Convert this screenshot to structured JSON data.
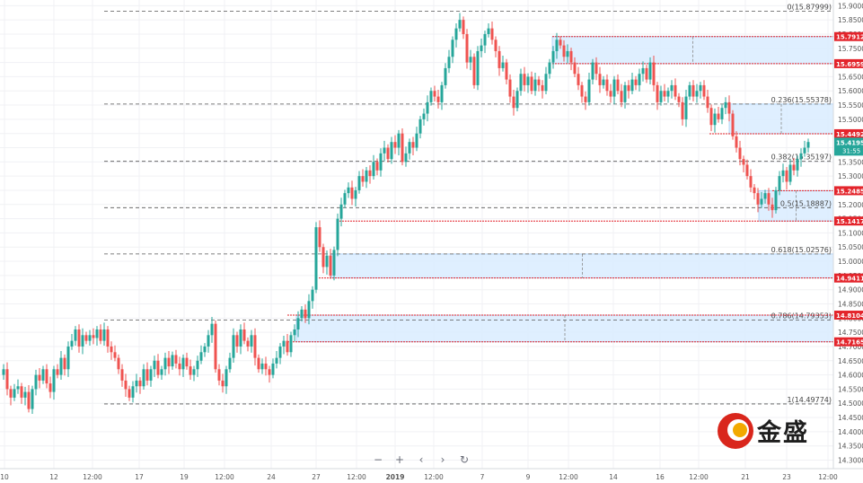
{
  "chart_data": {
    "type": "candlestick",
    "y_axis": {
      "range": [
        14.27,
        15.92
      ],
      "ticks": [
        "15.90000",
        "15.85000",
        "15.80000",
        "15.75000",
        "15.70000",
        "15.65000",
        "15.60000",
        "15.55000",
        "15.50000",
        "15.45000",
        "15.40000",
        "15.35000",
        "15.30000",
        "15.25000",
        "15.20000",
        "15.15000",
        "15.10000",
        "15.05000",
        "15.00000",
        "14.95000",
        "14.90000",
        "14.85000",
        "14.80000",
        "14.75000",
        "14.70000",
        "14.65000",
        "14.60000",
        "14.55000",
        "14.50000",
        "14.45000",
        "14.40000",
        "14.35000",
        "14.30000"
      ]
    },
    "x_axis": {
      "ticks": [
        "10",
        "12",
        "12:00",
        "17",
        "19",
        "12:00",
        "24",
        "27",
        "12:00",
        "2019",
        "12:00",
        "7",
        "9",
        "12:00",
        "14",
        "16",
        "12:00",
        "21",
        "23",
        "12:00"
      ]
    },
    "fib_levels": [
      {
        "ratio": 0,
        "value": 15.87999,
        "label": "0(15.87999)"
      },
      {
        "ratio": 0.236,
        "value": 15.55378,
        "label": "0.236(15.55378)"
      },
      {
        "ratio": 0.382,
        "value": 15.35197,
        "label": "0.382(15.35197)"
      },
      {
        "ratio": 0.5,
        "value": 15.18887,
        "label": "0.5(15.18887)"
      },
      {
        "ratio": 0.618,
        "value": 15.02576,
        "label": "0.618(15.02576)"
      },
      {
        "ratio": 0.786,
        "value": 14.79353,
        "label": "0.786(14.79353)"
      },
      {
        "ratio": 1,
        "value": 14.49774,
        "label": "1(14.49774)"
      }
    ],
    "horizontal_lines": [
      {
        "value": 15.79122,
        "label": "15.79122"
      },
      {
        "value": 15.6959,
        "label": "15.69590"
      },
      {
        "value": 15.44922,
        "label": "15.44922"
      },
      {
        "value": 15.24856,
        "label": "15.24856"
      },
      {
        "value": 15.14179,
        "label": "15.14179"
      },
      {
        "value": 14.94113,
        "label": "14.94113"
      },
      {
        "value": 14.81043,
        "label": "14.81043"
      },
      {
        "value": 14.71654,
        "label": "14.71654"
      }
    ],
    "zones": [
      {
        "top": 15.79122,
        "bottom": 15.6959
      },
      {
        "top": 15.55378,
        "bottom": 15.44922
      },
      {
        "top": 15.24856,
        "bottom": 15.14179
      },
      {
        "top": 15.02576,
        "bottom": 14.94113
      },
      {
        "top": 14.81043,
        "bottom": 14.71654
      }
    ],
    "current_price": {
      "value": 15.41951,
      "label": "15.41951",
      "countdown": "31:55"
    },
    "price_path": [
      [
        0,
        14.6
      ],
      [
        4,
        14.62
      ],
      [
        8,
        14.55
      ],
      [
        12,
        14.52
      ],
      [
        16,
        14.55
      ],
      [
        20,
        14.56
      ],
      [
        24,
        14.52
      ],
      [
        28,
        14.54
      ],
      [
        32,
        14.48
      ],
      [
        36,
        14.55
      ],
      [
        40,
        14.6
      ],
      [
        44,
        14.58
      ],
      [
        48,
        14.62
      ],
      [
        52,
        14.57
      ],
      [
        56,
        14.54
      ],
      [
        60,
        14.62
      ],
      [
        64,
        14.6
      ],
      [
        68,
        14.66
      ],
      [
        72,
        14.62
      ],
      [
        76,
        14.7
      ],
      [
        80,
        14.72
      ],
      [
        84,
        14.76
      ],
      [
        88,
        14.7
      ],
      [
        92,
        14.74
      ],
      [
        96,
        14.72
      ],
      [
        100,
        14.74
      ],
      [
        104,
        14.73
      ],
      [
        108,
        14.76
      ],
      [
        112,
        14.72
      ],
      [
        116,
        14.76
      ],
      [
        120,
        14.7
      ],
      [
        124,
        14.68
      ],
      [
        128,
        14.66
      ],
      [
        132,
        14.62
      ],
      [
        136,
        14.58
      ],
      [
        140,
        14.55
      ],
      [
        144,
        14.52
      ],
      [
        148,
        14.56
      ],
      [
        152,
        14.58
      ],
      [
        156,
        14.56
      ],
      [
        160,
        14.62
      ],
      [
        164,
        14.58
      ],
      [
        168,
        14.62
      ],
      [
        172,
        14.65
      ],
      [
        176,
        14.6
      ],
      [
        180,
        14.62
      ],
      [
        184,
        14.66
      ],
      [
        188,
        14.63
      ],
      [
        192,
        14.67
      ],
      [
        196,
        14.64
      ],
      [
        200,
        14.62
      ],
      [
        204,
        14.66
      ],
      [
        208,
        14.63
      ],
      [
        212,
        14.6
      ],
      [
        216,
        14.62
      ],
      [
        220,
        14.65
      ],
      [
        224,
        14.68
      ],
      [
        228,
        14.7
      ],
      [
        232,
        14.74
      ],
      [
        236,
        14.78
      ],
      [
        240,
        14.62
      ],
      [
        244,
        14.58
      ],
      [
        248,
        14.56
      ],
      [
        252,
        14.62
      ],
      [
        256,
        14.66
      ],
      [
        260,
        14.74
      ],
      [
        264,
        14.7
      ],
      [
        268,
        14.76
      ],
      [
        272,
        14.72
      ],
      [
        276,
        14.7
      ],
      [
        280,
        14.74
      ],
      [
        284,
        14.66
      ],
      [
        288,
        14.62
      ],
      [
        292,
        14.64
      ],
      [
        296,
        14.62
      ],
      [
        300,
        14.6
      ],
      [
        304,
        14.64
      ],
      [
        308,
        14.66
      ],
      [
        312,
        14.7
      ],
      [
        316,
        14.72
      ],
      [
        320,
        14.68
      ],
      [
        324,
        14.74
      ],
      [
        328,
        14.76
      ],
      [
        332,
        14.8
      ],
      [
        336,
        14.83
      ],
      [
        340,
        14.8
      ],
      [
        344,
        14.86
      ],
      [
        348,
        14.9
      ],
      [
        352,
        15.12
      ],
      [
        356,
        15.05
      ],
      [
        360,
        14.98
      ],
      [
        364,
        15.02
      ],
      [
        368,
        14.95
      ],
      [
        372,
        15.04
      ],
      [
        376,
        15.15
      ],
      [
        380,
        15.2
      ],
      [
        384,
        15.24
      ],
      [
        388,
        15.26
      ],
      [
        392,
        15.22
      ],
      [
        396,
        15.25
      ],
      [
        400,
        15.3
      ],
      [
        404,
        15.28
      ],
      [
        408,
        15.32
      ],
      [
        412,
        15.3
      ],
      [
        416,
        15.35
      ],
      [
        420,
        15.32
      ],
      [
        424,
        15.38
      ],
      [
        428,
        15.4
      ],
      [
        432,
        15.36
      ],
      [
        436,
        15.42
      ],
      [
        440,
        15.4
      ],
      [
        444,
        15.45
      ],
      [
        448,
        15.35
      ],
      [
        452,
        15.38
      ],
      [
        456,
        15.42
      ],
      [
        460,
        15.4
      ],
      [
        464,
        15.45
      ],
      [
        468,
        15.5
      ],
      [
        472,
        15.52
      ],
      [
        476,
        15.56
      ],
      [
        480,
        15.6
      ],
      [
        484,
        15.58
      ],
      [
        488,
        15.56
      ],
      [
        492,
        15.62
      ],
      [
        496,
        15.68
      ],
      [
        500,
        15.72
      ],
      [
        504,
        15.78
      ],
      [
        508,
        15.82
      ],
      [
        512,
        15.85
      ],
      [
        516,
        15.8
      ],
      [
        520,
        15.7
      ],
      [
        524,
        15.72
      ],
      [
        528,
        15.62
      ],
      [
        532,
        15.74
      ],
      [
        536,
        15.76
      ],
      [
        540,
        15.8
      ],
      [
        544,
        15.82
      ],
      [
        548,
        15.78
      ],
      [
        552,
        15.74
      ],
      [
        556,
        15.68
      ],
      [
        560,
        15.7
      ],
      [
        564,
        15.64
      ],
      [
        568,
        15.58
      ],
      [
        572,
        15.54
      ],
      [
        576,
        15.6
      ],
      [
        580,
        15.66
      ],
      [
        584,
        15.62
      ],
      [
        588,
        15.65
      ],
      [
        592,
        15.6
      ],
      [
        596,
        15.64
      ],
      [
        600,
        15.62
      ],
      [
        604,
        15.6
      ],
      [
        608,
        15.66
      ],
      [
        612,
        15.7
      ],
      [
        616,
        15.74
      ],
      [
        620,
        15.78
      ],
      [
        624,
        15.76
      ],
      [
        628,
        15.72
      ],
      [
        632,
        15.74
      ],
      [
        636,
        15.7
      ],
      [
        640,
        15.66
      ],
      [
        644,
        15.62
      ],
      [
        648,
        15.58
      ],
      [
        652,
        15.56
      ],
      [
        656,
        15.64
      ],
      [
        660,
        15.7
      ],
      [
        664,
        15.66
      ],
      [
        668,
        15.62
      ],
      [
        672,
        15.64
      ],
      [
        676,
        15.6
      ],
      [
        680,
        15.58
      ],
      [
        684,
        15.64
      ],
      [
        688,
        15.6
      ],
      [
        692,
        15.56
      ],
      [
        696,
        15.62
      ],
      [
        700,
        15.6
      ],
      [
        704,
        15.64
      ],
      [
        708,
        15.62
      ],
      [
        712,
        15.66
      ],
      [
        716,
        15.68
      ],
      [
        720,
        15.64
      ],
      [
        724,
        15.7
      ],
      [
        728,
        15.62
      ],
      [
        732,
        15.56
      ],
      [
        736,
        15.6
      ],
      [
        740,
        15.58
      ],
      [
        744,
        15.6
      ],
      [
        748,
        15.62
      ],
      [
        752,
        15.58
      ],
      [
        756,
        15.56
      ],
      [
        760,
        15.5
      ],
      [
        764,
        15.58
      ],
      [
        768,
        15.62
      ],
      [
        772,
        15.58
      ],
      [
        776,
        15.6
      ],
      [
        780,
        15.62
      ],
      [
        784,
        15.58
      ],
      [
        788,
        15.54
      ],
      [
        792,
        15.48
      ],
      [
        796,
        15.52
      ],
      [
        800,
        15.5
      ],
      [
        804,
        15.54
      ],
      [
        808,
        15.56
      ],
      [
        812,
        15.52
      ],
      [
        816,
        15.44
      ],
      [
        820,
        15.4
      ],
      [
        824,
        15.36
      ],
      [
        828,
        15.34
      ],
      [
        832,
        15.3
      ],
      [
        836,
        15.26
      ],
      [
        840,
        15.24
      ],
      [
        844,
        15.2
      ],
      [
        848,
        15.22
      ],
      [
        852,
        15.24
      ],
      [
        856,
        15.2
      ],
      [
        860,
        15.18
      ],
      [
        864,
        15.25
      ],
      [
        868,
        15.3
      ],
      [
        872,
        15.32
      ],
      [
        876,
        15.28
      ],
      [
        880,
        15.34
      ],
      [
        884,
        15.32
      ],
      [
        888,
        15.36
      ],
      [
        892,
        15.38
      ],
      [
        896,
        15.4
      ],
      [
        900,
        15.42
      ]
    ]
  },
  "toolbar": {
    "zoom_out": "−",
    "zoom_in": "+",
    "prev": "‹",
    "next": "›",
    "reset": "↻"
  },
  "logo": {
    "text": "金盛"
  },
  "colors": {
    "bull": "#26a69a",
    "bear": "#ef5350",
    "zone_fill": "#dceeff",
    "zone_stroke": "#9ec9f5",
    "red_line": "#e3242b",
    "fib_line": "#555555",
    "price_label_bg": "#e3242b",
    "current_bg": "#26a69a"
  }
}
